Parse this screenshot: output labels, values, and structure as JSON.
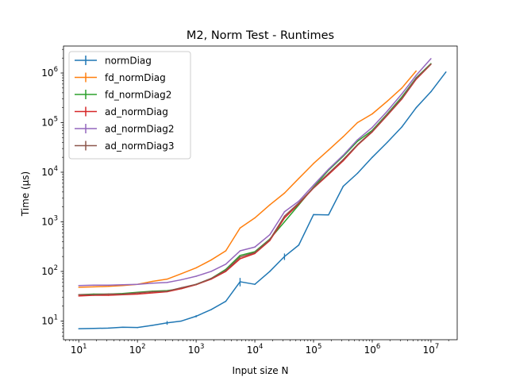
{
  "chart_data": {
    "type": "line",
    "title": "M2, Norm Test - Runtimes",
    "xlabel": "Input size N",
    "ylabel": "Time (µs)",
    "xscale": "log",
    "yscale": "log",
    "xlim": [
      5.5,
      28000000
    ],
    "ylim": [
      4.2,
      3500000
    ],
    "xticks": [
      {
        "value": 10,
        "base": "10",
        "exp": "1"
      },
      {
        "value": 100,
        "base": "10",
        "exp": "2"
      },
      {
        "value": 1000,
        "base": "10",
        "exp": "3"
      },
      {
        "value": 10000,
        "base": "10",
        "exp": "4"
      },
      {
        "value": 100000,
        "base": "10",
        "exp": "5"
      },
      {
        "value": 1000000,
        "base": "10",
        "exp": "6"
      },
      {
        "value": 10000000,
        "base": "10",
        "exp": "7"
      }
    ],
    "yticks": [
      {
        "value": 10,
        "base": "10",
        "exp": "1"
      },
      {
        "value": 100,
        "base": "10",
        "exp": "2"
      },
      {
        "value": 1000,
        "base": "10",
        "exp": "3"
      },
      {
        "value": 10000,
        "base": "10",
        "exp": "4"
      },
      {
        "value": 100000,
        "base": "10",
        "exp": "5"
      },
      {
        "value": 1000000,
        "base": "10",
        "exp": "6"
      }
    ],
    "legend_position": "upper-left",
    "grid": false,
    "series": [
      {
        "name": "normDiag",
        "color": "#1f77b4",
        "x": [
          10,
          18,
          32,
          56,
          100,
          180,
          320,
          560,
          1000,
          1800,
          3200,
          5600,
          10000,
          18000,
          32000,
          56000,
          100000,
          180000,
          320000,
          560000,
          1000000,
          1800000,
          3200000,
          5600000,
          10000000,
          18000000
        ],
        "y": [
          7,
          7.1,
          7.2,
          7.5,
          7.4,
          8.2,
          9.2,
          10,
          12.5,
          17,
          25,
          62,
          55,
          100,
          200,
          340,
          1400,
          1380,
          5200,
          9500,
          20000,
          40000,
          82000,
          200000,
          420000,
          1050000
        ],
        "err": [
          0,
          0,
          0,
          0,
          0,
          0,
          0.8,
          0,
          0.6,
          0,
          0,
          12,
          0,
          0,
          30,
          0,
          0,
          0,
          0,
          0,
          0,
          0,
          0,
          0,
          0,
          0
        ]
      },
      {
        "name": "fd_normDiag",
        "color": "#ff7f0e",
        "x": [
          10,
          18,
          32,
          56,
          100,
          180,
          320,
          560,
          1000,
          1800,
          3200,
          5600,
          10000,
          18000,
          32000,
          56000,
          100000,
          180000,
          320000,
          560000,
          1000000,
          1800000,
          3200000,
          5600000
        ],
        "y": [
          48,
          49,
          50,
          52,
          55,
          63,
          70,
          90,
          118,
          170,
          260,
          750,
          1200,
          2200,
          3800,
          7500,
          15000,
          28000,
          52000,
          100000,
          150000,
          270000,
          500000,
          1100000
        ],
        "err": []
      },
      {
        "name": "fd_normDiag2",
        "color": "#2ca02c",
        "x": [
          10,
          18,
          32,
          56,
          100,
          180,
          320,
          560,
          1000,
          1800,
          3200,
          5600,
          10000,
          18000,
          32000,
          56000,
          100000,
          180000,
          320000,
          560000,
          1000000,
          1800000,
          3200000,
          5600000,
          10000000
        ],
        "y": [
          34,
          35,
          35,
          36,
          38,
          40,
          41,
          45,
          55,
          72,
          110,
          210,
          250,
          450,
          1000,
          2200,
          5000,
          11000,
          21000,
          42000,
          70000,
          150000,
          330000,
          800000,
          1550000
        ],
        "err": []
      },
      {
        "name": "ad_normDiag",
        "color": "#d62728",
        "x": [
          10,
          18,
          32,
          56,
          100,
          180,
          320,
          560,
          1000,
          1800,
          3200,
          5600,
          10000,
          18000,
          32000,
          56000,
          100000,
          180000,
          320000,
          560000,
          1000000,
          1800000,
          3200000,
          5600000,
          10000000
        ],
        "y": [
          32,
          33,
          33,
          34,
          35,
          37,
          39,
          45,
          54,
          70,
          100,
          180,
          230,
          420,
          1200,
          2300,
          4800,
          9000,
          17000,
          35000,
          65000,
          140000,
          300000,
          750000,
          1500000
        ],
        "err": []
      },
      {
        "name": "ad_normDiag2",
        "color": "#9467bd",
        "x": [
          10,
          18,
          32,
          56,
          100,
          180,
          320,
          560,
          1000,
          1800,
          3200,
          5600,
          10000,
          18000,
          32000,
          56000,
          100000,
          180000,
          320000,
          560000,
          1000000,
          1800000,
          3200000,
          5600000,
          10000000
        ],
        "y": [
          52,
          53,
          53,
          54,
          55,
          58,
          60,
          68,
          80,
          100,
          140,
          260,
          310,
          550,
          1600,
          2600,
          5500,
          11500,
          22000,
          45000,
          80000,
          170000,
          380000,
          900000,
          1950000
        ],
        "err": []
      },
      {
        "name": "ad_normDiag3",
        "color": "#8c564b",
        "x": [
          10,
          18,
          32,
          56,
          100,
          180,
          320,
          560,
          1000,
          1800,
          3200,
          5600,
          10000,
          18000,
          32000,
          56000,
          100000,
          180000,
          320000,
          560000,
          1000000,
          1800000,
          3200000,
          5600000,
          10000000
        ],
        "y": [
          34,
          34,
          35,
          35,
          37,
          39,
          40,
          47,
          55,
          72,
          105,
          195,
          240,
          440,
          1300,
          2400,
          4900,
          9500,
          18000,
          36000,
          67000,
          145000,
          310000,
          780000,
          1520000
        ],
        "err": []
      }
    ]
  }
}
